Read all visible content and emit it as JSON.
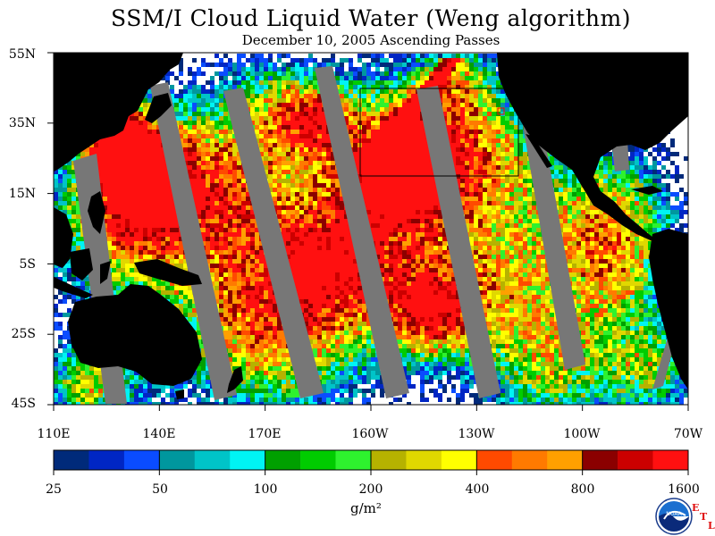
{
  "map": {
    "title": "SSM/I Cloud Liquid Water (Weng algorithm)",
    "subtitle": "December 10, 2005  Ascending Passes",
    "lat_labels": [
      "55N",
      "35N",
      "15N",
      "5S",
      "25S",
      "45S"
    ],
    "lon_labels": [
      "110E",
      "140E",
      "170E",
      "160W",
      "130W",
      "100W",
      "70W"
    ],
    "region": {
      "lon_min": 110,
      "lon_max": 290,
      "lat_min": -45,
      "lat_max": 55
    }
  },
  "colorbar": {
    "labels": [
      "25",
      "50",
      "100",
      "200",
      "400",
      "800",
      "1600"
    ],
    "colors": [
      "#002a7a",
      "#0026c4",
      "#0a4cff",
      "#00979e",
      "#00c4c8",
      "#00f4f4",
      "#00a000",
      "#00cc00",
      "#2ef22e",
      "#b6b200",
      "#e0d800",
      "#ffff00",
      "#ff4a00",
      "#ff7a00",
      "#ffa000",
      "#8b0000",
      "#cc0000",
      "#ff1010"
    ],
    "unit": "g/m²"
  },
  "colors": {
    "land": "#000000",
    "swath_gap": "#777777",
    "background": "#ffffff",
    "box": "#000000",
    "marker": "#ff0000"
  },
  "logo": {
    "icon": "noaa-logo-icon",
    "text": "NOAA",
    "etl": [
      "E",
      "T",
      "L"
    ]
  }
}
